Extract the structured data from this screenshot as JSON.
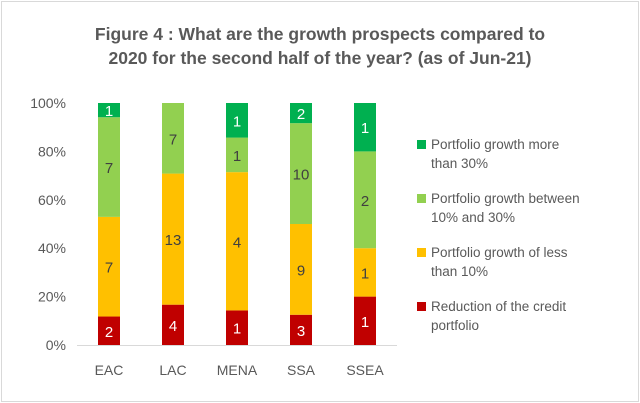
{
  "chart_data": {
    "type": "bar",
    "stacked": "percent",
    "title_lines": [
      "Figure 4 : What are the growth prospects compared to",
      "2020 for the second half of the year? (as of Jun-21)"
    ],
    "categories": [
      "EAC",
      "LAC",
      "MENA",
      "SSA",
      "SSEA"
    ],
    "ylim": [
      0,
      100
    ],
    "yticks": [
      "0%",
      "20%",
      "40%",
      "60%",
      "80%",
      "100%"
    ],
    "grid": false,
    "legend_position": "right",
    "series": [
      {
        "name": "Reduction of the credit portfolio",
        "color": "#c00000",
        "values": [
          2,
          4,
          1,
          3,
          1
        ]
      },
      {
        "name": "Portfolio growth of less than 10%",
        "color": "#ffc000",
        "values": [
          7,
          13,
          4,
          9,
          1
        ]
      },
      {
        "name": "Portfolio growth between 10% and 30%",
        "color": "#92d050",
        "values": [
          7,
          7,
          1,
          10,
          2
        ]
      },
      {
        "name": "Portfolio growth more than 30%",
        "color": "#00b050",
        "values": [
          1,
          0,
          1,
          2,
          1
        ]
      }
    ],
    "legend_lines": [
      [
        "Portfolio growth more",
        "than 30%"
      ],
      [
        "Portfolio growth between",
        "10% and 30%"
      ],
      [
        "Portfolio growth of less",
        "than 10%"
      ],
      [
        "Reduction of the credit",
        "portfolio"
      ]
    ],
    "label_colors": {
      "#c00000": "#ffffff",
      "#ffc000": "#404040",
      "#92d050": "#404040",
      "#00b050": "#ffffff"
    }
  }
}
